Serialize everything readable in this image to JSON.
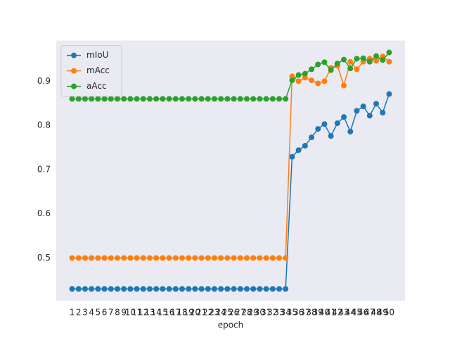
{
  "chart_data": {
    "type": "line",
    "x_label": "epoch",
    "categories": [
      "1",
      "2",
      "3",
      "4",
      "5",
      "6",
      "7",
      "8",
      "9",
      "10",
      "11",
      "12",
      "13",
      "14",
      "15",
      "16",
      "17",
      "18",
      "19",
      "20",
      "21",
      "22",
      "23",
      "24",
      "25",
      "26",
      "27",
      "28",
      "29",
      "30",
      "31",
      "32",
      "33",
      "34",
      "35",
      "36",
      "37",
      "38",
      "39",
      "40",
      "41",
      "42",
      "43",
      "44",
      "45",
      "46",
      "47",
      "48",
      "49",
      "50"
    ],
    "series": [
      {
        "name": "mIoU",
        "color": "#1f77b4",
        "values": [
          0.43,
          0.43,
          0.43,
          0.43,
          0.43,
          0.43,
          0.43,
          0.43,
          0.43,
          0.43,
          0.43,
          0.43,
          0.43,
          0.43,
          0.43,
          0.43,
          0.43,
          0.43,
          0.43,
          0.43,
          0.43,
          0.43,
          0.43,
          0.43,
          0.43,
          0.43,
          0.43,
          0.43,
          0.43,
          0.43,
          0.43,
          0.43,
          0.43,
          0.43,
          0.729,
          0.744,
          0.754,
          0.773,
          0.792,
          0.803,
          0.776,
          0.805,
          0.819,
          0.786,
          0.833,
          0.843,
          0.822,
          0.849,
          0.829,
          0.871
        ]
      },
      {
        "name": "mAcc",
        "color": "#ff7f0e",
        "values": [
          0.5,
          0.5,
          0.5,
          0.5,
          0.5,
          0.5,
          0.5,
          0.5,
          0.5,
          0.5,
          0.5,
          0.5,
          0.5,
          0.5,
          0.5,
          0.5,
          0.5,
          0.5,
          0.5,
          0.5,
          0.5,
          0.5,
          0.5,
          0.5,
          0.5,
          0.5,
          0.5,
          0.5,
          0.5,
          0.5,
          0.5,
          0.5,
          0.5,
          0.5,
          0.911,
          0.9,
          0.908,
          0.902,
          0.895,
          0.9,
          0.93,
          0.935,
          0.89,
          0.944,
          0.927,
          0.944,
          0.951,
          0.946,
          0.956,
          0.944
        ]
      },
      {
        "name": "aAcc",
        "color": "#2ca02c",
        "values": [
          0.86,
          0.86,
          0.86,
          0.86,
          0.86,
          0.86,
          0.86,
          0.86,
          0.86,
          0.86,
          0.86,
          0.86,
          0.86,
          0.86,
          0.86,
          0.86,
          0.86,
          0.86,
          0.86,
          0.86,
          0.86,
          0.86,
          0.86,
          0.86,
          0.86,
          0.86,
          0.86,
          0.86,
          0.86,
          0.86,
          0.86,
          0.86,
          0.86,
          0.86,
          0.902,
          0.914,
          0.917,
          0.927,
          0.938,
          0.943,
          0.925,
          0.94,
          0.949,
          0.929,
          0.951,
          0.952,
          0.944,
          0.957,
          0.948,
          0.965
        ]
      }
    ],
    "ylim": [
      0.403,
      0.992
    ],
    "yticks": [
      0.5,
      0.6,
      0.7,
      0.8,
      0.9
    ],
    "grid": false,
    "legend": "upper left"
  }
}
